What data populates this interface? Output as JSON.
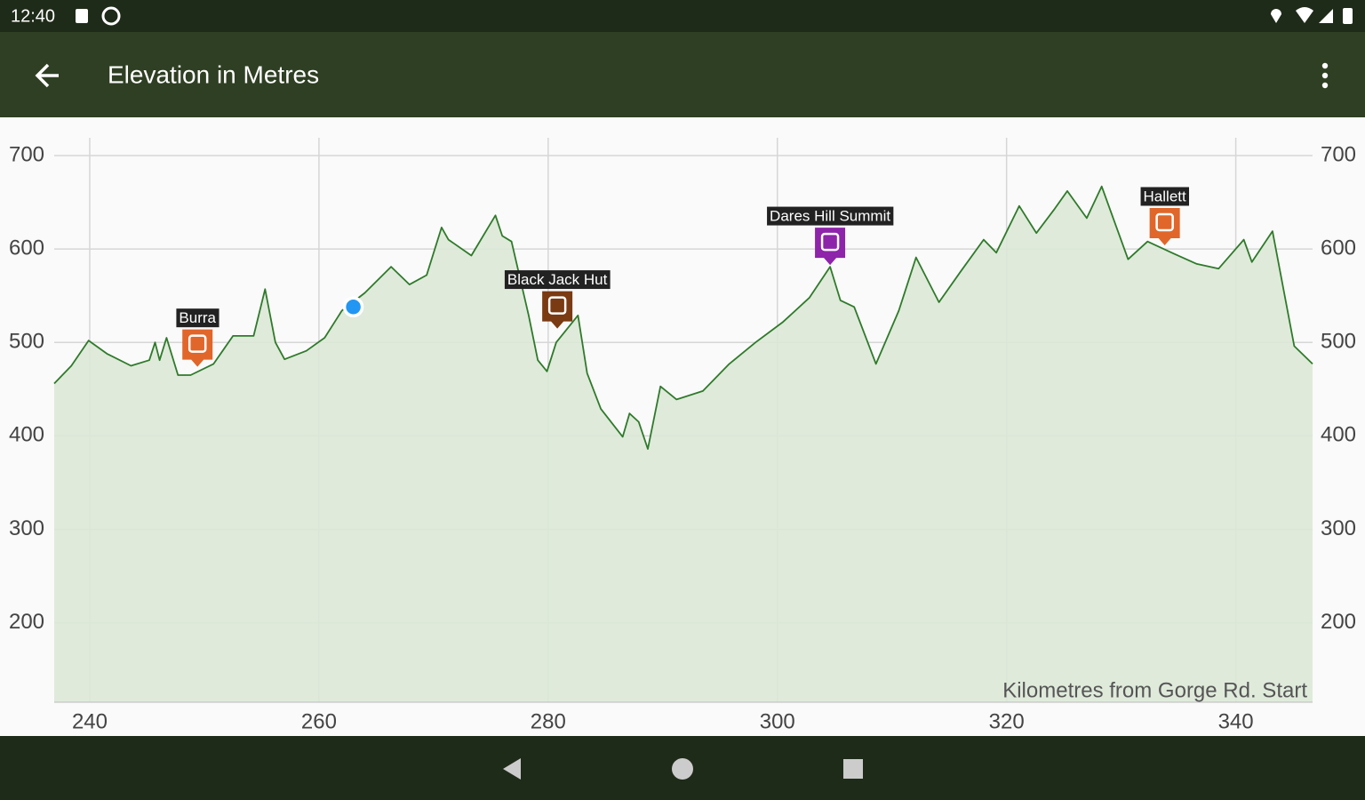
{
  "status_bar": {
    "time": "12:40"
  },
  "app_bar": {
    "title": "Elevation in Metres"
  },
  "chart_data": {
    "type": "area",
    "x_label": "Kilometres from Gorge Rd. Start",
    "color": "#2f7a2a",
    "fill_color": "#dbe8d7",
    "grid": true,
    "xlim": [
      236.9,
      346.7
    ],
    "ylim": [
      115,
      719
    ],
    "xticks": [
      240,
      260,
      280,
      300,
      320,
      340
    ],
    "yticks": [
      200,
      300,
      400,
      500,
      600,
      700
    ],
    "x": [
      236.9,
      238.4,
      239.9,
      241.5,
      243.6,
      245.2,
      245.7,
      246.1,
      246.7,
      247.7,
      248.8,
      250.8,
      252.5,
      254.3,
      255.3,
      256.2,
      257.0,
      258.9,
      260.5,
      262.0,
      264.0,
      266.3,
      267.9,
      269.4,
      270.7,
      271.3,
      273.3,
      275.4,
      276.0,
      276.8,
      278.3,
      279.1,
      279.9,
      280.7,
      282.6,
      283.4,
      284.6,
      286.5,
      287.1,
      287.9,
      288.7,
      289.8,
      291.2,
      293.5,
      295.8,
      298.1,
      300.5,
      302.8,
      304.6,
      305.5,
      306.7,
      308.6,
      310.6,
      312.1,
      314.1,
      316.0,
      318.0,
      319.1,
      321.1,
      322.6,
      324.2,
      325.3,
      327.0,
      328.3,
      330.6,
      332.3,
      334.6,
      336.6,
      338.5,
      340.7,
      341.4,
      343.2,
      345.1,
      346.7
    ],
    "values": [
      456,
      475,
      502,
      488,
      475,
      481,
      500,
      481,
      505,
      465,
      465,
      477,
      507,
      507,
      557,
      500,
      482,
      491,
      505,
      534,
      553,
      581,
      562,
      572,
      623,
      610,
      593,
      636,
      614,
      608,
      529,
      481,
      469,
      500,
      529,
      467,
      429,
      399,
      424,
      415,
      386,
      453,
      439,
      448,
      477,
      500,
      522,
      548,
      581,
      545,
      538,
      477,
      534,
      591,
      543,
      576,
      610,
      596,
      646,
      617,
      643,
      662,
      633,
      667,
      589,
      608,
      595,
      584,
      579,
      610,
      586,
      619,
      496,
      477
    ],
    "markers": [
      {
        "label": "Burra",
        "x": 249.4,
        "y": 472,
        "color": "#e0662a"
      },
      {
        "label": "Black Jack Hut",
        "x": 280.8,
        "y": 513,
        "color": "#7a3a12"
      },
      {
        "label": "Dares Hill Summit",
        "x": 304.6,
        "y": 581,
        "color": "#8e24aa"
      },
      {
        "label": "Hallett",
        "x": 333.8,
        "y": 602,
        "color": "#e0662a"
      }
    ],
    "current_location": {
      "x": 263.0,
      "y": 538,
      "color": "#2196f3"
    }
  }
}
